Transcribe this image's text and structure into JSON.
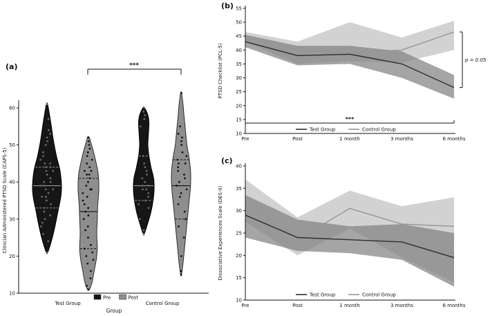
{
  "figure": {
    "description_colors": {
      "test_line": "#2d2d2d",
      "control_line": "#959595",
      "test_band": "#7f7f7f",
      "control_band": "#c3c3c3",
      "pre_violin": "#161616",
      "post_violin": "#8e8e8e"
    }
  },
  "chart_data": [
    {
      "type": "violin",
      "panel_label": "(a)",
      "ylabel": "Clinician Administered PTSD Scale (CAPS-5)",
      "xlabel": "Group",
      "ylim": [
        10,
        65
      ],
      "yticks": [
        10,
        20,
        30,
        40,
        50,
        60
      ],
      "groups": [
        "Test Group",
        "Control Group"
      ],
      "conditions": [
        "Pre",
        "Post"
      ],
      "legend": [
        {
          "label": "Pre",
          "color": "#161616"
        },
        {
          "label": "Post",
          "color": "#8e8e8e"
        }
      ],
      "significance_label": "***",
      "violins": [
        {
          "group": "Test Group",
          "condition": "Pre",
          "fill": "#161616",
          "stroke": "#000000",
          "line_color": "#9a9a9a",
          "dot_color": "#6a6a6a",
          "median": 39,
          "q1": 33,
          "q3": 44,
          "max_halfwidth": 21,
          "profile": [
            [
              21,
              0.05
            ],
            [
              24,
              0.3
            ],
            [
              28,
              0.55
            ],
            [
              32,
              0.75
            ],
            [
              36,
              0.95
            ],
            [
              39,
              1.0
            ],
            [
              43,
              0.9
            ],
            [
              47,
              0.65
            ],
            [
              51,
              0.45
            ],
            [
              55,
              0.3
            ],
            [
              58,
              0.18
            ],
            [
              61,
              0.04
            ]
          ],
          "points": [
            61,
            57,
            54,
            53,
            52,
            51,
            50,
            48,
            47,
            46,
            45,
            45,
            44,
            44,
            43,
            43,
            42,
            41,
            41,
            40,
            40,
            39,
            39,
            38,
            38,
            37,
            36,
            36,
            35,
            34,
            33,
            32,
            31,
            30,
            29,
            28,
            26,
            24,
            21
          ]
        },
        {
          "group": "Test Group",
          "condition": "Post",
          "fill": "#8e8e8e",
          "stroke": "#2b2b2b",
          "line_color": "#111111",
          "dot_color": "#111111",
          "median": 32,
          "q1": 22,
          "q3": 41,
          "max_halfwidth": 15,
          "profile": [
            [
              11,
              0.1
            ],
            [
              13,
              0.35
            ],
            [
              16,
              0.55
            ],
            [
              19,
              0.75
            ],
            [
              22,
              0.85
            ],
            [
              26,
              0.8
            ],
            [
              30,
              0.85
            ],
            [
              34,
              0.9
            ],
            [
              38,
              1.0
            ],
            [
              42,
              0.95
            ],
            [
              45,
              0.75
            ],
            [
              48,
              0.5
            ],
            [
              50,
              0.3
            ],
            [
              52,
              0.08
            ]
          ],
          "points": [
            52,
            51,
            50,
            49,
            48,
            47,
            46,
            45,
            44,
            43,
            43,
            42,
            42,
            41,
            40,
            39,
            38,
            38,
            37,
            36,
            35,
            34,
            33,
            32,
            31,
            30,
            28,
            27,
            25,
            23,
            22,
            21,
            20,
            19,
            18,
            16,
            14,
            12,
            11
          ]
        },
        {
          "group": "Control Group",
          "condition": "Pre",
          "fill": "#161616",
          "stroke": "#000000",
          "line_color": "#9a9a9a",
          "dot_color": "#6a6a6a",
          "median": 39,
          "q1": 35,
          "q3": 47,
          "max_halfwidth": 15,
          "profile": [
            [
              26,
              0.05
            ],
            [
              29,
              0.4
            ],
            [
              32,
              0.7
            ],
            [
              35,
              0.9
            ],
            [
              38,
              1.0
            ],
            [
              41,
              0.95
            ],
            [
              44,
              0.7
            ],
            [
              47,
              0.5
            ],
            [
              50,
              0.4
            ],
            [
              53,
              0.45
            ],
            [
              56,
              0.5
            ],
            [
              58,
              0.4
            ],
            [
              60,
              0.08
            ]
          ],
          "points": [
            60,
            59,
            58,
            57,
            55,
            47,
            45,
            44,
            43,
            42,
            41,
            40,
            39,
            39,
            38,
            38,
            37,
            36,
            35,
            34,
            33,
            30,
            27,
            26
          ]
        },
        {
          "group": "Control Group",
          "condition": "Post",
          "fill": "#8e8e8e",
          "stroke": "#2b2b2b",
          "line_color": "#111111",
          "dot_color": "#111111",
          "median": 39,
          "q1": 30,
          "q3": 46,
          "max_halfwidth": 14,
          "profile": [
            [
              15,
              0.04
            ],
            [
              18,
              0.2
            ],
            [
              22,
              0.35
            ],
            [
              26,
              0.5
            ],
            [
              30,
              0.65
            ],
            [
              34,
              0.8
            ],
            [
              38,
              0.95
            ],
            [
              41,
              1.0
            ],
            [
              44,
              0.95
            ],
            [
              47,
              0.8
            ],
            [
              50,
              0.6
            ],
            [
              54,
              0.45
            ],
            [
              58,
              0.3
            ],
            [
              61,
              0.2
            ],
            [
              64,
              0.05
            ]
          ],
          "points": [
            64,
            55,
            53,
            52,
            51,
            50,
            48,
            47,
            46,
            45,
            45,
            44,
            43,
            42,
            41,
            40,
            39,
            38,
            37,
            36,
            34,
            32,
            30,
            28,
            25,
            20,
            16,
            15
          ]
        }
      ]
    },
    {
      "type": "line",
      "panel_label": "(b)",
      "ylabel": "PTSD Checklist (PCL-5)",
      "x_categories": [
        "Pre",
        "Post",
        "1 month",
        "3 months",
        "6 months"
      ],
      "ylim": [
        10,
        55
      ],
      "yticks": [
        10,
        15,
        20,
        25,
        30,
        35,
        40,
        45,
        50,
        55
      ],
      "series": [
        {
          "name": "Test Group",
          "color": "#2d2d2d",
          "values": [
            43,
            38,
            38.5,
            35,
            26.5
          ],
          "band_low": [
            41,
            34.5,
            35,
            30,
            22.5
          ],
          "band_high": [
            45.5,
            41.5,
            41.5,
            39.5,
            31
          ],
          "band_color": "#7f7f7f",
          "band_opacity": 0.7
        },
        {
          "name": "Control Group",
          "color": "#959595",
          "values": [
            44.5,
            40,
            39,
            40,
            46.5
          ],
          "band_low": [
            43,
            35,
            36,
            35.5,
            40
          ],
          "band_high": [
            46.5,
            43,
            50,
            44.5,
            50.5
          ],
          "band_color": "#c3c3c3",
          "band_opacity": 0.75
        }
      ],
      "annotations": {
        "right_bracket_label": "p = 0.05",
        "bottom_bracket_label": "***"
      }
    },
    {
      "type": "line",
      "panel_label": "(c)",
      "ylabel": "Dissociative Experiences Scale (DES-II)",
      "x_categories": [
        "Pre",
        "Post",
        "1 month",
        "3 months",
        "6 months"
      ],
      "ylim": [
        10,
        40
      ],
      "yticks": [
        10,
        15,
        20,
        25,
        30,
        35,
        40
      ],
      "series": [
        {
          "name": "Test Group",
          "color": "#2d2d2d",
          "values": [
            29,
            24,
            23.5,
            23,
            19.5
          ],
          "band_low": [
            24,
            21,
            20.5,
            19,
            13
          ],
          "band_high": [
            33.5,
            28,
            26.5,
            27,
            25
          ],
          "band_color": "#7f7f7f",
          "band_opacity": 0.7
        },
        {
          "name": "Control Group",
          "color": "#959595",
          "values": [
            32,
            23.5,
            30.5,
            27,
            26.5
          ],
          "band_low": [
            27.5,
            20,
            26,
            19.5,
            14
          ],
          "band_high": [
            37,
            28.5,
            34.5,
            31,
            33
          ],
          "band_color": "#c3c3c3",
          "band_opacity": 0.75
        }
      ],
      "annotations": {}
    }
  ]
}
